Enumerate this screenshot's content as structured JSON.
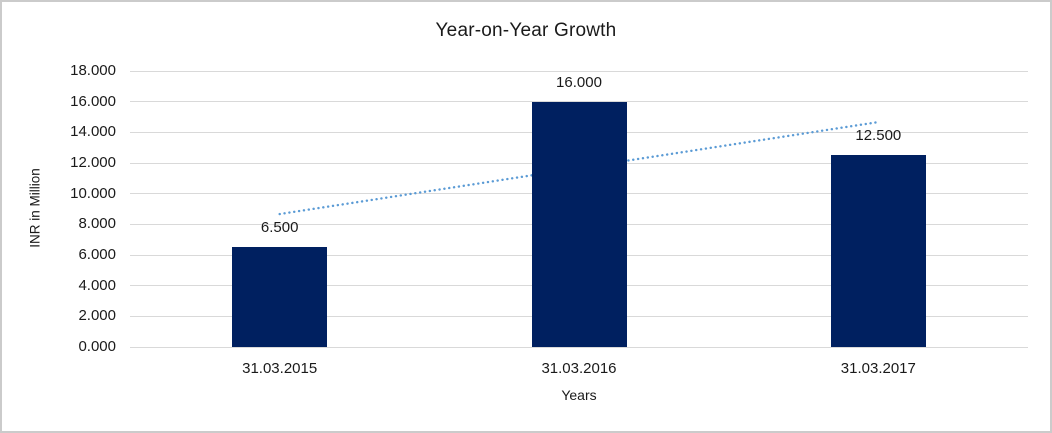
{
  "chart_data": {
    "type": "bar",
    "title": "Year-on-Year Growth",
    "categories": [
      "31.03.2015",
      "31.03.2016",
      "31.03.2017"
    ],
    "values": [
      6.5,
      16.0,
      12.5
    ],
    "data_labels": [
      "6.500",
      "16.000",
      "12.500"
    ],
    "xlabel": "Years",
    "ylabel": "INR in Million",
    "ylim": [
      0,
      18
    ],
    "ytick_step": 2,
    "ytick_labels": [
      "0.000",
      "2.000",
      "4.000",
      "6.000",
      "8.000",
      "10.000",
      "12.000",
      "14.000",
      "16.000",
      "18.000"
    ],
    "grid": true,
    "legend": "none",
    "trendline": {
      "style": "dotted",
      "start_value": 8.67,
      "end_value": 14.67
    },
    "colors": {
      "bar": "#002060",
      "gridline": "#d9d9d9",
      "trendline": "#5b9bd5",
      "text": "#1a1a1a"
    }
  }
}
